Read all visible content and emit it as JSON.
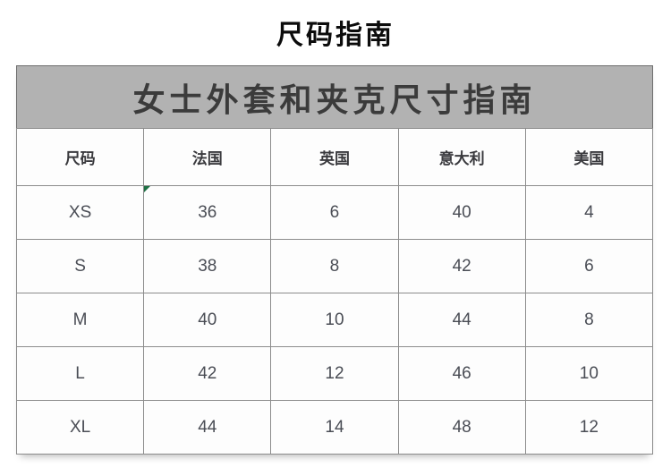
{
  "page": {
    "title": "尺码指南"
  },
  "size_guide": {
    "banner_title": "女士外套和夹克尺寸指南",
    "columns": [
      "尺码",
      "法国",
      "英国",
      "意大利",
      "美国"
    ],
    "rows": [
      {
        "cells": [
          "XS",
          "36",
          "6",
          "40",
          "4"
        ]
      },
      {
        "cells": [
          "S",
          "38",
          "8",
          "42",
          "6"
        ]
      },
      {
        "cells": [
          "M",
          "40",
          "10",
          "44",
          "8"
        ]
      },
      {
        "cells": [
          "L",
          "42",
          "12",
          "46",
          "10"
        ]
      },
      {
        "cells": [
          "XL",
          "44",
          "14",
          "48",
          "12"
        ]
      }
    ],
    "flag_marker": {
      "row": 0,
      "column": 1,
      "color": "#1d7044"
    }
  },
  "colors": {
    "banner_background": "#b2b2b2",
    "banner_text": "#3b3b3b",
    "table_border": "#8c8c8c",
    "cell_text": "#4a4d55",
    "title_text": "#0c0c0c",
    "flag_green": "#1d7044"
  }
}
